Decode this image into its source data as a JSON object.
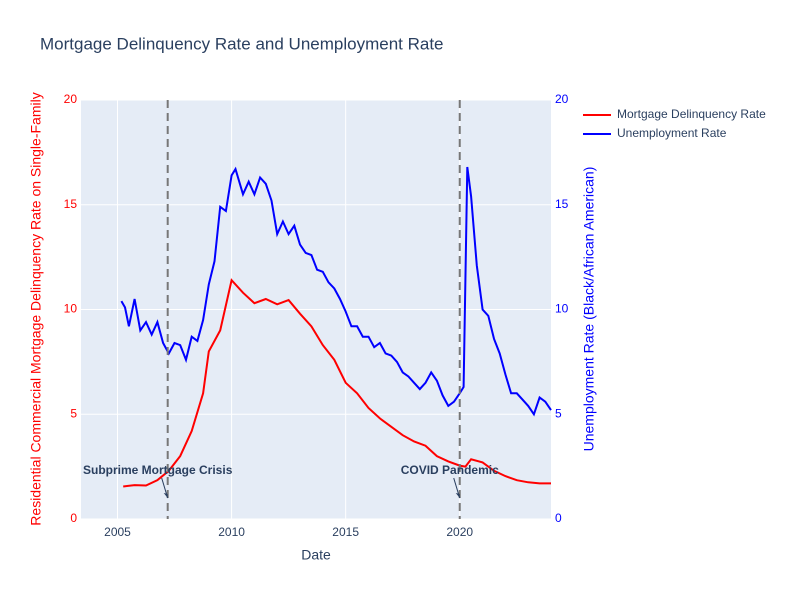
{
  "chart_data": {
    "type": "line",
    "title": "Mortgage Delinquency Rate and Unemployment Rate",
    "x_label": "Date",
    "y_label": "Residential Commercial Mortgage Delinquency Rate on Single-Family",
    "y2_label": "Unemployment Rate (Black/African American)",
    "xlim": [
      2003.4,
      2024.0
    ],
    "xticks": [
      2005,
      2010,
      2015,
      2020
    ],
    "ylim": [
      0,
      20
    ],
    "yticks": [
      0,
      5,
      10,
      15,
      20
    ],
    "y2lim": [
      0,
      20
    ],
    "y2ticks": [
      0,
      5,
      10,
      15,
      20
    ],
    "grid": true,
    "legend": "outside-right",
    "series": [
      {
        "name": "Mortgage Delinquency Rate",
        "color": "#ff0000",
        "x": [
          2005.25,
          2005.75,
          2006.25,
          2006.75,
          2007.25,
          2007.75,
          2008.25,
          2008.75,
          2009.0,
          2009.5,
          2010.0,
          2010.5,
          2011.0,
          2011.5,
          2012.0,
          2012.5,
          2013.0,
          2013.5,
          2014.0,
          2014.5,
          2015.0,
          2015.5,
          2016.0,
          2016.5,
          2017.0,
          2017.5,
          2018.0,
          2018.5,
          2019.0,
          2019.5,
          2020.0,
          2020.25,
          2020.5,
          2021.0,
          2021.5,
          2022.0,
          2022.5,
          2023.0,
          2023.5,
          2024.0
        ],
        "values": [
          1.55,
          1.62,
          1.6,
          1.85,
          2.3,
          3.0,
          4.2,
          6.0,
          8.0,
          9.0,
          11.4,
          10.8,
          10.3,
          10.5,
          10.25,
          10.45,
          9.8,
          9.2,
          8.3,
          7.6,
          6.5,
          6.0,
          5.3,
          4.8,
          4.4,
          4.0,
          3.7,
          3.5,
          3.0,
          2.75,
          2.55,
          2.5,
          2.85,
          2.7,
          2.3,
          2.05,
          1.85,
          1.75,
          1.7,
          1.7
        ]
      },
      {
        "name": "Unemployment Rate",
        "color": "#0000ff",
        "axis": "y2",
        "x": [
          2005.17,
          2005.33,
          2005.5,
          2005.75,
          2006.0,
          2006.25,
          2006.5,
          2006.75,
          2007.0,
          2007.25,
          2007.5,
          2007.75,
          2008.0,
          2008.25,
          2008.5,
          2008.75,
          2009.0,
          2009.25,
          2009.5,
          2009.75,
          2010.0,
          2010.17,
          2010.5,
          2010.75,
          2011.0,
          2011.25,
          2011.5,
          2011.75,
          2012.0,
          2012.25,
          2012.5,
          2012.75,
          2013.0,
          2013.25,
          2013.5,
          2013.75,
          2014.0,
          2014.25,
          2014.5,
          2014.75,
          2015.0,
          2015.25,
          2015.5,
          2015.75,
          2016.0,
          2016.25,
          2016.5,
          2016.75,
          2017.0,
          2017.25,
          2017.5,
          2017.75,
          2018.0,
          2018.25,
          2018.5,
          2018.75,
          2019.0,
          2019.25,
          2019.5,
          2019.75,
          2020.0,
          2020.17,
          2020.33,
          2020.5,
          2020.75,
          2021.0,
          2021.25,
          2021.5,
          2021.75,
          2022.0,
          2022.25,
          2022.5,
          2022.75,
          2023.0,
          2023.25,
          2023.5,
          2023.75,
          2024.0
        ],
        "values": [
          10.4,
          10.1,
          9.2,
          10.5,
          9.0,
          9.4,
          8.8,
          9.4,
          8.4,
          7.9,
          8.4,
          8.3,
          7.6,
          8.7,
          8.5,
          9.5,
          11.2,
          12.3,
          14.9,
          14.7,
          16.4,
          16.7,
          15.5,
          16.1,
          15.5,
          16.3,
          16.0,
          15.2,
          13.6,
          14.2,
          13.6,
          14.0,
          13.1,
          12.7,
          12.6,
          11.9,
          11.8,
          11.3,
          11.0,
          10.5,
          9.9,
          9.2,
          9.2,
          8.7,
          8.7,
          8.2,
          8.4,
          7.9,
          7.8,
          7.5,
          7.0,
          6.8,
          6.5,
          6.2,
          6.5,
          7.0,
          6.6,
          5.9,
          5.4,
          5.6,
          6.0,
          6.3,
          16.8,
          15.4,
          12.1,
          10.0,
          9.7,
          8.6,
          7.9,
          6.9,
          6.0,
          6.0,
          5.7,
          5.4,
          5.0,
          5.8,
          5.6,
          5.2
        ]
      }
    ],
    "vlines": [
      2007.2,
      2020.0
    ],
    "annotations": [
      {
        "text": "Subprime Mortgage Crisis",
        "x": 2007.2,
        "y": 1
      },
      {
        "text": "COVID Pandemic",
        "x": 2020.0,
        "y": 1
      }
    ]
  }
}
